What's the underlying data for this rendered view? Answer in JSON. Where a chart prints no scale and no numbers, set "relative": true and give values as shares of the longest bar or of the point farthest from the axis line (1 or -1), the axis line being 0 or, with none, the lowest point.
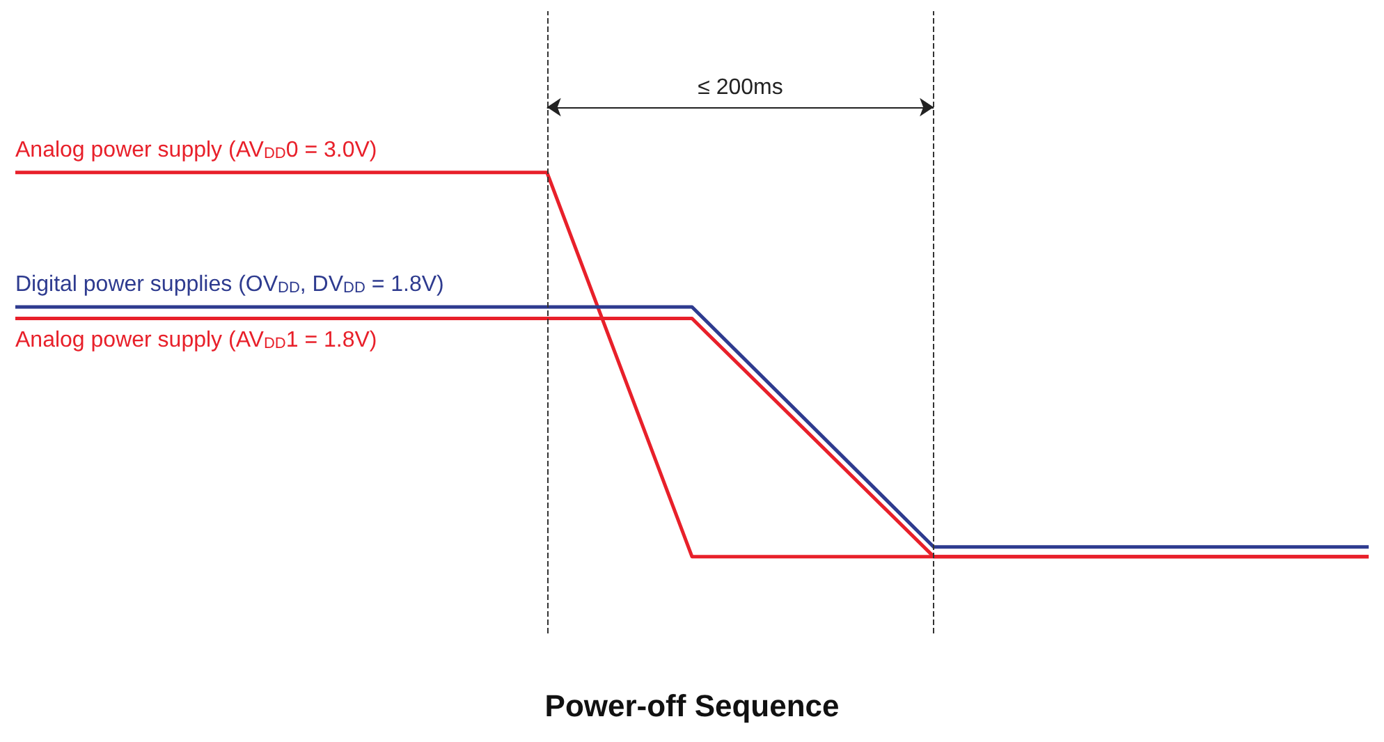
{
  "chart_data": {
    "type": "line",
    "title": "Power-off Sequence",
    "relative": true,
    "grid": false,
    "legend": false,
    "marker": "none",
    "line_style": "solid",
    "categories": [
      null,
      null,
      null,
      null,
      null,
      null,
      null,
      null,
      null,
      null,
      null,
      null,
      null,
      null,
      null,
      null,
      null,
      null,
      null,
      null,
      null,
      null,
      null,
      null,
      null,
      null,
      null,
      null,
      null
    ],
    "series": [
      {
        "name": "Analog power supply (AV$_{DD}$0 = 3.0V)",
        "color": "#e8202a",
        "values": [
          1,
          null,
          null,
          null,
          null,
          null,
          null,
          null,
          null,
          null,
          null,
          1,
          null,
          null,
          0,
          null,
          null,
          null,
          null,
          null,
          null,
          null,
          null,
          null,
          null,
          null,
          null,
          null,
          0
        ]
      },
      {
        "name": "Digital power supplies (OV$_{DD}$, DV$_{DD}$ = 1.8V)",
        "color": "#2e3b8f",
        "values": [
          0.65,
          null,
          null,
          null,
          null,
          null,
          null,
          null,
          null,
          null,
          null,
          null,
          null,
          null,
          0.65,
          null,
          null,
          null,
          null,
          0.025,
          null,
          null,
          null,
          null,
          null,
          null,
          null,
          null,
          0.025
        ]
      },
      {
        "name": "Analog power supply (AV$_{DD}$1 = 1.8V)",
        "color": "#e8202a",
        "values": [
          0.62,
          null,
          null,
          null,
          null,
          null,
          null,
          null,
          null,
          null,
          null,
          null,
          null,
          null,
          0.62,
          null,
          null,
          null,
          null,
          0,
          null,
          null,
          null,
          null,
          null,
          null,
          null,
          null,
          0
        ]
      }
    ],
    "annotations": [
      "≤ 200ms"
    ]
  }
}
